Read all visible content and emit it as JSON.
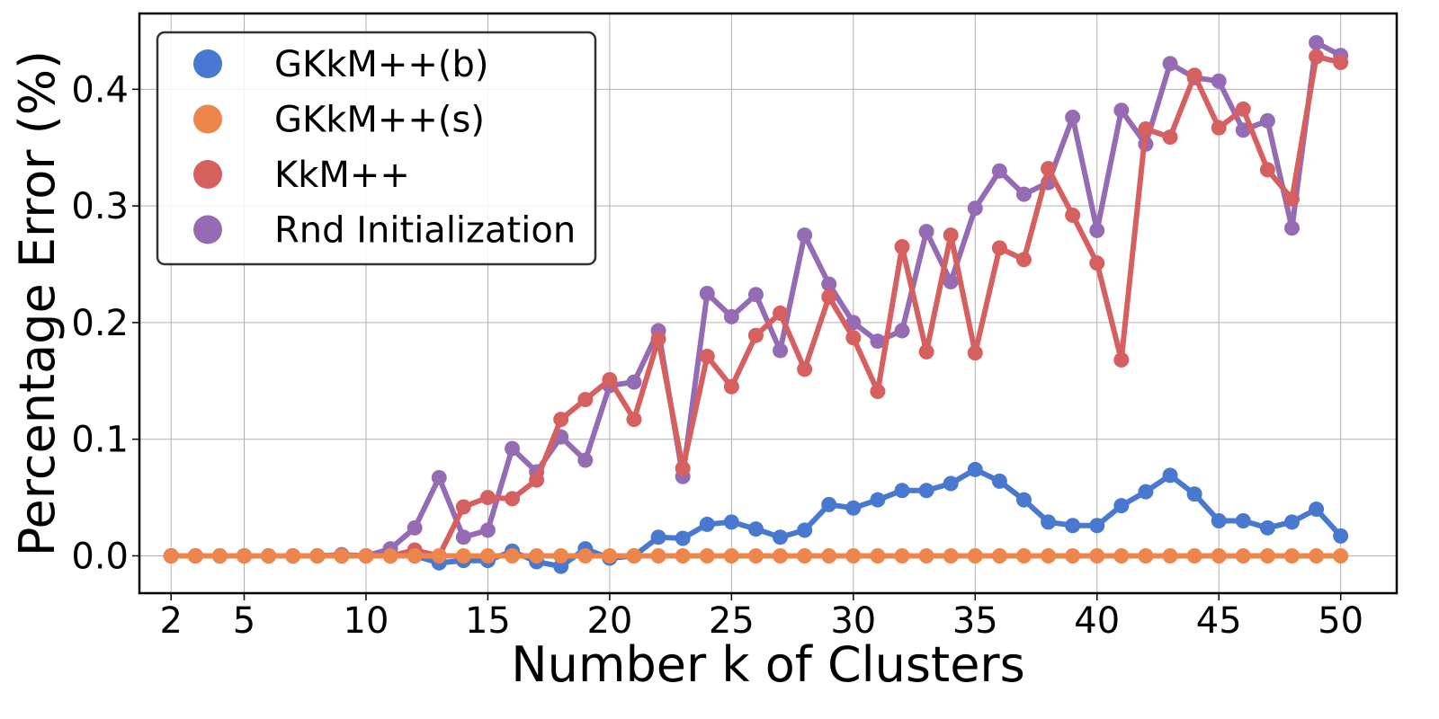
{
  "chart_data": {
    "type": "line",
    "title": "",
    "xlabel": "Number k of Clusters",
    "ylabel": "Percentage Error (%)",
    "xlim": [
      0.7,
      52.3
    ],
    "ylim": [
      -0.032,
      0.465
    ],
    "xticks": [
      2,
      5,
      10,
      15,
      20,
      25,
      30,
      35,
      40,
      45,
      50
    ],
    "yticks": [
      0.0,
      0.1,
      0.2,
      0.3,
      0.4
    ],
    "ytick_labels": [
      "0.0",
      "0.1",
      "0.2",
      "0.3",
      "0.4"
    ],
    "grid": true,
    "legend_position": "top-left",
    "x": [
      2,
      3,
      4,
      5,
      6,
      7,
      8,
      9,
      10,
      11,
      12,
      13,
      14,
      15,
      16,
      17,
      18,
      19,
      20,
      21,
      22,
      23,
      24,
      25,
      26,
      27,
      28,
      29,
      30,
      31,
      32,
      33,
      34,
      35,
      36,
      37,
      38,
      39,
      40,
      41,
      42,
      43,
      44,
      45,
      46,
      47,
      48,
      49,
      50
    ],
    "series": [
      {
        "name": "GKkM++(b)",
        "color": "#4878cf",
        "values": [
          0,
          0,
          0,
          0,
          0,
          0,
          0,
          0,
          0,
          0,
          0,
          -0.006,
          -0.004,
          -0.004,
          0.004,
          -0.005,
          -0.009,
          0.006,
          -0.002,
          0.0,
          0.016,
          0.015,
          0.027,
          0.029,
          0.023,
          0.016,
          0.022,
          0.044,
          0.041,
          0.048,
          0.056,
          0.056,
          0.062,
          0.074,
          0.064,
          0.048,
          0.029,
          0.026,
          0.026,
          0.043,
          0.055,
          0.069,
          0.053,
          0.03,
          0.03,
          0.024,
          0.029,
          0.04,
          0.017
        ]
      },
      {
        "name": "GKkM++(s)",
        "color": "#ee854a",
        "values": [
          0,
          0,
          0,
          0,
          0,
          0,
          0,
          0,
          0,
          0,
          0,
          0,
          0,
          0,
          0,
          0,
          0,
          0,
          0,
          0,
          0,
          0,
          0,
          0,
          0,
          0,
          0,
          0,
          0,
          0,
          0,
          0,
          0,
          0,
          0,
          0,
          0,
          0,
          0,
          0,
          0,
          0,
          0,
          0,
          0,
          0,
          0,
          0,
          0
        ]
      },
      {
        "name": "KkM++",
        "color": "#d65f5f",
        "values": [
          0,
          0,
          0,
          0,
          0,
          0,
          0,
          0,
          0,
          0,
          0.005,
          0.0,
          0.042,
          0.05,
          0.049,
          0.065,
          0.117,
          0.134,
          0.151,
          0.117,
          0.186,
          0.075,
          0.171,
          0.145,
          0.189,
          0.208,
          0.16,
          0.222,
          0.187,
          0.141,
          0.265,
          0.175,
          0.275,
          0.174,
          0.264,
          0.254,
          0.332,
          0.292,
          0.251,
          0.168,
          0.366,
          0.359,
          0.412,
          0.367,
          0.383,
          0.331,
          0.306,
          0.428,
          0.423
        ]
      },
      {
        "name": "Rnd Initialization",
        "color": "#956cb4",
        "values": [
          0,
          0,
          0,
          0,
          0,
          0,
          0,
          0.001,
          0.0,
          0.006,
          0.024,
          0.067,
          0.016,
          0.022,
          0.092,
          0.072,
          0.102,
          0.082,
          0.146,
          0.149,
          0.193,
          0.068,
          0.225,
          0.205,
          0.224,
          0.176,
          0.275,
          0.233,
          0.2,
          0.184,
          0.193,
          0.278,
          0.235,
          0.298,
          0.33,
          0.31,
          0.32,
          0.376,
          0.279,
          0.382,
          0.353,
          0.422,
          0.41,
          0.407,
          0.365,
          0.373,
          0.281,
          0.44,
          0.429
        ]
      }
    ],
    "draw_order": [
      3,
      2,
      0,
      1
    ]
  }
}
